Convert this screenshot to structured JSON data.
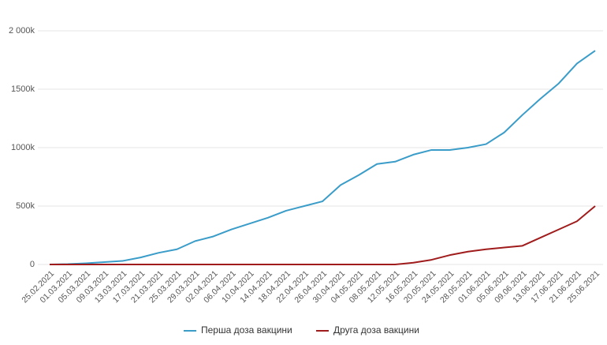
{
  "chart_data": {
    "type": "line",
    "categories": [
      "25.02.2021",
      "01.03.2021",
      "05.03.2021",
      "09.03.2021",
      "13.03.2021",
      "17.03.2021",
      "21.03.2021",
      "25.03.2021",
      "29.03.2021",
      "02.04.2021",
      "06.04.2021",
      "10.04.2021",
      "14.04.2021",
      "18.04.2021",
      "22.04.2021",
      "26.04.2021",
      "30.04.2021",
      "04.05.2021",
      "08.05.2021",
      "12.05.2021",
      "16.05.2021",
      "20.05.2021",
      "24.05.2021",
      "28.05.2021",
      "01.06.2021",
      "05.06.2021",
      "09.06.2021",
      "13.06.2021",
      "17.06.2021",
      "21.06.2021",
      "25.06.2021"
    ],
    "series": [
      {
        "name": "Перша доза вакцини",
        "color": "#3a9cc8",
        "values": [
          0,
          3000,
          10000,
          20000,
          30000,
          60000,
          100000,
          130000,
          200000,
          240000,
          300000,
          350000,
          400000,
          460000,
          500000,
          540000,
          680000,
          765000,
          860000,
          880000,
          940000,
          980000,
          980000,
          1000000,
          1030000,
          1130000,
          1280000,
          1420000,
          1550000,
          1720000,
          1830000
        ]
      },
      {
        "name": "Друга доза вакцини",
        "color": "#a01c1c",
        "values": [
          0,
          0,
          0,
          0,
          0,
          0,
          0,
          0,
          0,
          0,
          0,
          0,
          0,
          0,
          0,
          0,
          0,
          0,
          0,
          0,
          15000,
          40000,
          80000,
          110000,
          130000,
          145000,
          160000,
          230000,
          300000,
          370000,
          500000
        ]
      }
    ],
    "ylim": [
      0,
      2000000
    ],
    "yticks": [
      0,
      {
        "value": 500000,
        "label": "500k"
      },
      {
        "value": 1000000,
        "label": "1000k"
      },
      {
        "value": 1500000,
        "label": "1500k"
      },
      {
        "value": 2000000,
        "label": "2 000k"
      }
    ],
    "grid": true,
    "legend": "bottom"
  }
}
